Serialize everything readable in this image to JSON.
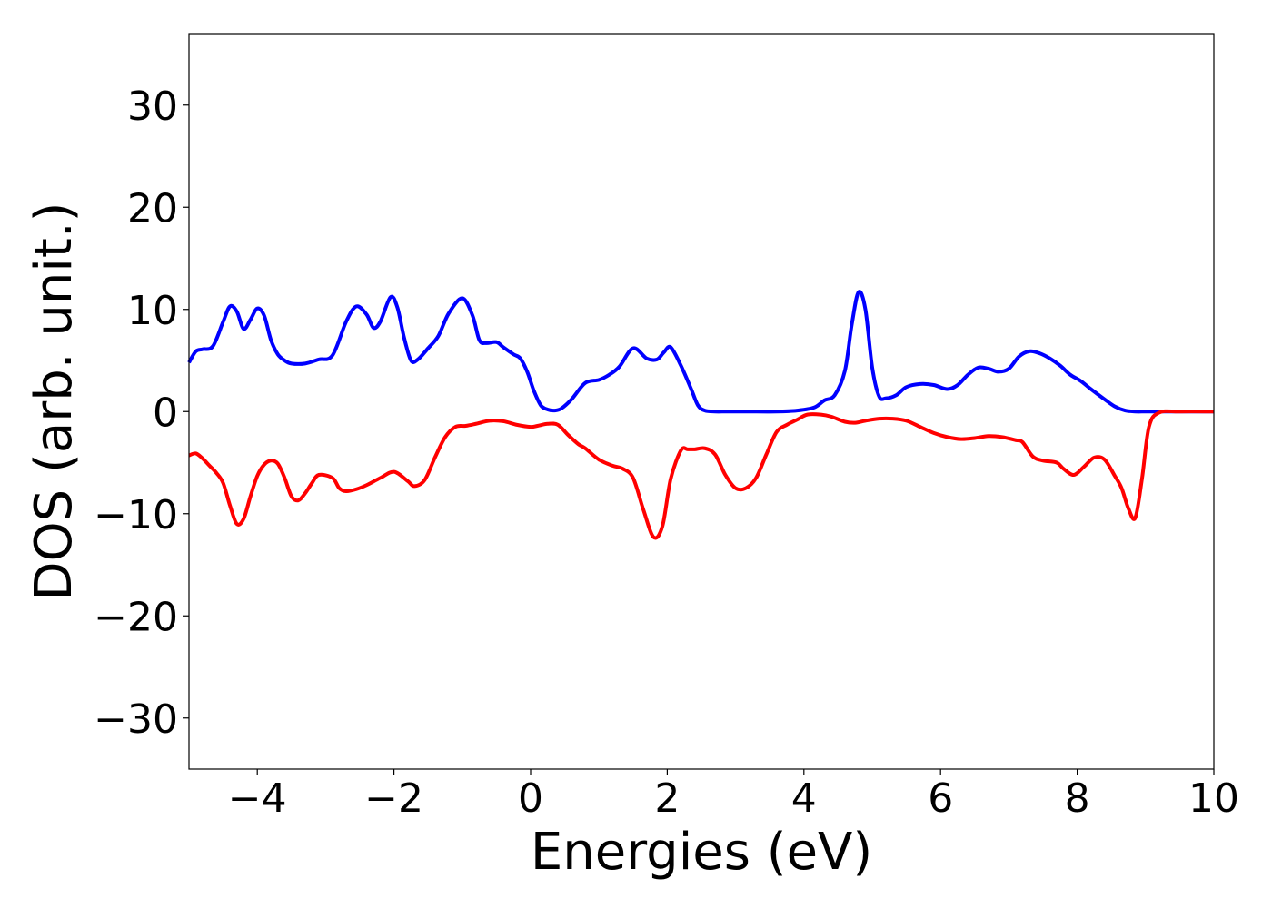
{
  "chart_data": {
    "type": "line",
    "title": "",
    "xlabel": "Energies (eV)",
    "ylabel": "DOS (arb. unit.)",
    "xlim": [
      -5,
      10
    ],
    "ylim": [
      -35,
      37
    ],
    "xticks": [
      -4,
      -2,
      0,
      2,
      4,
      6,
      8,
      10
    ],
    "yticks": [
      -30,
      -20,
      -10,
      0,
      10,
      20,
      30
    ],
    "xtick_labels": [
      "−4",
      "−2",
      "0",
      "2",
      "4",
      "6",
      "8",
      "10"
    ],
    "ytick_labels": [
      "−30",
      "−20",
      "−10",
      "0",
      "10",
      "20",
      "30"
    ],
    "grid": false,
    "legend": "none",
    "series": [
      {
        "color": "#0000ff",
        "x": [
          -5.0,
          -4.9,
          -4.8,
          -4.65,
          -4.5,
          -4.4,
          -4.3,
          -4.2,
          -4.1,
          -4.0,
          -3.9,
          -3.8,
          -3.7,
          -3.6,
          -3.5,
          -3.3,
          -3.1,
          -2.9,
          -2.7,
          -2.55,
          -2.4,
          -2.3,
          -2.2,
          -2.05,
          -1.95,
          -1.85,
          -1.75,
          -1.65,
          -1.5,
          -1.35,
          -1.2,
          -1.0,
          -0.85,
          -0.75,
          -0.65,
          -0.5,
          -0.4,
          -0.25,
          -0.15,
          -0.05,
          0.05,
          0.15,
          0.25,
          0.35,
          0.45,
          0.6,
          0.8,
          1.0,
          1.15,
          1.3,
          1.5,
          1.7,
          1.85,
          1.95,
          2.05,
          2.2,
          2.35,
          2.45,
          2.55,
          2.7,
          2.85,
          3.0,
          3.2,
          3.6,
          3.9,
          4.15,
          4.3,
          4.45,
          4.6,
          4.7,
          4.8,
          4.9,
          5.0,
          5.1,
          5.2,
          5.35,
          5.5,
          5.7,
          5.9,
          6.1,
          6.25,
          6.4,
          6.55,
          6.7,
          6.85,
          7.0,
          7.15,
          7.3,
          7.45,
          7.6,
          7.75,
          7.9,
          8.05,
          8.2,
          8.4,
          8.55,
          8.7,
          8.85,
          9.0,
          9.2,
          9.5,
          10.0
        ],
        "y": [
          4.8,
          5.9,
          6.1,
          6.4,
          8.8,
          10.3,
          9.8,
          8.1,
          9.0,
          10.1,
          9.4,
          7.0,
          5.6,
          5.0,
          4.7,
          4.7,
          5.1,
          5.5,
          8.8,
          10.3,
          9.5,
          8.2,
          8.8,
          11.2,
          10.2,
          7.2,
          5.0,
          5.1,
          6.2,
          7.4,
          9.6,
          11.1,
          9.4,
          7.0,
          6.7,
          6.8,
          6.3,
          5.6,
          5.2,
          3.9,
          2.0,
          0.6,
          0.2,
          0.1,
          0.3,
          1.2,
          2.8,
          3.1,
          3.6,
          4.4,
          6.2,
          5.2,
          5.1,
          5.8,
          6.3,
          4.5,
          2.2,
          0.6,
          0.1,
          0.0,
          0.0,
          0.0,
          0.0,
          0.0,
          0.1,
          0.4,
          1.1,
          1.6,
          4.0,
          8.5,
          11.7,
          10.0,
          4.3,
          1.5,
          1.3,
          1.6,
          2.4,
          2.7,
          2.6,
          2.2,
          2.6,
          3.6,
          4.3,
          4.2,
          3.9,
          4.2,
          5.4,
          5.9,
          5.7,
          5.2,
          4.5,
          3.6,
          3.0,
          2.2,
          1.2,
          0.5,
          0.1,
          0.0,
          0.0,
          0.0,
          0.0,
          0.0
        ]
      },
      {
        "color": "#ff0000",
        "x": [
          -5.0,
          -4.9,
          -4.8,
          -4.7,
          -4.6,
          -4.5,
          -4.4,
          -4.3,
          -4.2,
          -4.1,
          -4.0,
          -3.9,
          -3.8,
          -3.7,
          -3.6,
          -3.5,
          -3.4,
          -3.3,
          -3.2,
          -3.1,
          -2.9,
          -2.8,
          -2.7,
          -2.55,
          -2.4,
          -2.2,
          -2.0,
          -1.8,
          -1.7,
          -1.55,
          -1.4,
          -1.25,
          -1.1,
          -0.95,
          -0.8,
          -0.6,
          -0.4,
          -0.2,
          0.0,
          0.1,
          0.25,
          0.4,
          0.55,
          0.7,
          0.8,
          1.0,
          1.2,
          1.35,
          1.5,
          1.65,
          1.8,
          1.93,
          2.05,
          2.2,
          2.3,
          2.4,
          2.55,
          2.7,
          2.85,
          3.0,
          3.15,
          3.3,
          3.45,
          3.6,
          3.75,
          3.9,
          4.05,
          4.25,
          4.4,
          4.6,
          4.75,
          4.9,
          5.1,
          5.3,
          5.5,
          5.7,
          5.9,
          6.1,
          6.3,
          6.5,
          6.7,
          6.9,
          7.1,
          7.2,
          7.35,
          7.5,
          7.7,
          7.8,
          7.95,
          8.1,
          8.25,
          8.4,
          8.55,
          8.65,
          8.75,
          8.85,
          8.95,
          9.05,
          9.2,
          9.5,
          10.0
        ],
        "y": [
          -4.3,
          -4.1,
          -4.6,
          -5.3,
          -6.0,
          -7.0,
          -9.2,
          -11.0,
          -10.5,
          -8.3,
          -6.3,
          -5.2,
          -4.8,
          -5.1,
          -6.5,
          -8.3,
          -8.7,
          -8.0,
          -7.0,
          -6.2,
          -6.5,
          -7.5,
          -7.8,
          -7.6,
          -7.2,
          -6.5,
          -5.9,
          -6.8,
          -7.3,
          -6.7,
          -4.5,
          -2.5,
          -1.5,
          -1.4,
          -1.2,
          -0.9,
          -0.95,
          -1.3,
          -1.5,
          -1.4,
          -1.2,
          -1.3,
          -2.3,
          -3.2,
          -3.6,
          -4.7,
          -5.3,
          -5.6,
          -6.5,
          -9.6,
          -12.3,
          -11.2,
          -6.6,
          -3.8,
          -3.7,
          -3.7,
          -3.6,
          -4.2,
          -6.2,
          -7.5,
          -7.5,
          -6.5,
          -4.2,
          -2.0,
          -1.3,
          -0.8,
          -0.3,
          -0.3,
          -0.5,
          -1.0,
          -1.1,
          -0.9,
          -0.7,
          -0.7,
          -0.9,
          -1.5,
          -2.1,
          -2.5,
          -2.7,
          -2.6,
          -2.4,
          -2.5,
          -2.8,
          -3.0,
          -4.4,
          -4.8,
          -5.0,
          -5.6,
          -6.2,
          -5.4,
          -4.5,
          -4.7,
          -6.3,
          -7.5,
          -9.5,
          -10.4,
          -6.5,
          -1.5,
          -0.1,
          0.0,
          0.0
        ]
      }
    ]
  }
}
